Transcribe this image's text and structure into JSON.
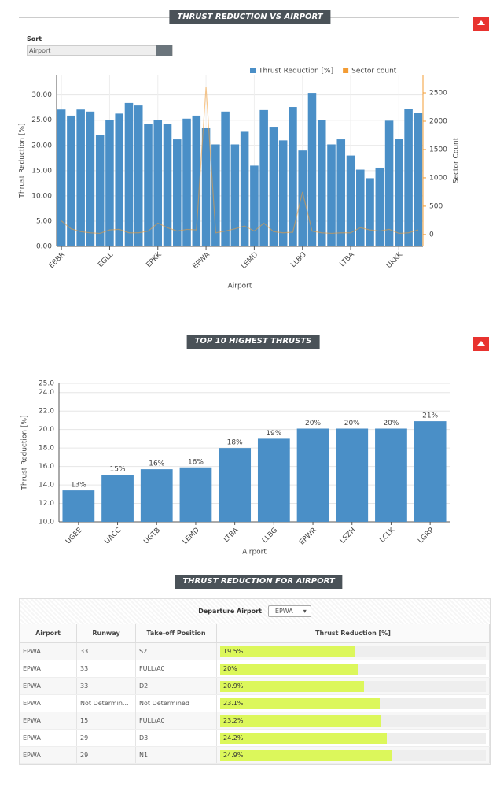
{
  "controls": {
    "sort_label": "Sort",
    "sort_value": "Airport"
  },
  "chart_data": [
    {
      "type": "bar",
      "title": "THRUST REDUCTION VS AIRPORT",
      "categories": [
        "EBBR",
        null,
        null,
        null,
        null,
        "EGLL",
        null,
        null,
        null,
        null,
        "EPKK",
        null,
        null,
        null,
        null,
        "EPWA",
        null,
        null,
        null,
        null,
        "LEMD",
        null,
        null,
        null,
        null,
        "LLBG",
        null,
        null,
        null,
        null,
        "LTBA",
        null,
        null,
        null,
        null,
        "UKKK",
        null,
        null
      ],
      "series": [
        {
          "name": "Thrust Reduction [%]",
          "color": "#4a8fc7",
          "values": [
            27.1,
            25.9,
            27.1,
            26.7,
            22.1,
            25.1,
            26.3,
            28.4,
            27.9,
            24.2,
            25.0,
            24.2,
            21.2,
            25.3,
            25.9,
            23.4,
            20.2,
            26.7,
            20.2,
            22.7,
            16.0,
            27.0,
            23.7,
            21.0,
            27.6,
            19.0,
            30.4,
            25.0,
            20.2,
            21.2,
            18.0,
            15.2,
            13.5,
            15.6,
            24.9,
            21.3,
            27.2,
            26.5
          ]
        },
        {
          "name": "Sector count",
          "color": "#f39c34",
          "axis": "y2",
          "values": [
            240,
            100,
            50,
            30,
            20,
            80,
            90,
            30,
            30,
            60,
            200,
            120,
            60,
            90,
            80,
            2600,
            30,
            60,
            100,
            150,
            60,
            200,
            50,
            30,
            40,
            750,
            60,
            30,
            20,
            30,
            30,
            120,
            80,
            60,
            90,
            20,
            30,
            80
          ]
        }
      ],
      "ylabel": "Thrust Reduction [%]",
      "y2label": "Sector Count",
      "xlabel": "Airport",
      "ylim": [
        0,
        34
      ],
      "yticks": [
        {
          "value": 0,
          "label": "0.00"
        },
        {
          "value": 5,
          "label": "5.00"
        },
        {
          "value": 10,
          "label": "10.00"
        },
        {
          "value": 15,
          "label": "15.00"
        },
        {
          "value": 20,
          "label": "20.00"
        },
        {
          "value": 25,
          "label": "25.00"
        },
        {
          "value": 30,
          "label": "30.00"
        }
      ],
      "y2lim": [
        -210,
        2820
      ],
      "y2ticks": [
        0,
        500,
        1000,
        1500,
        2000,
        2500
      ],
      "grid": true,
      "legend": "top-right"
    },
    {
      "type": "bar",
      "title": "TOP 10 HIGHEST THRUSTS",
      "categories": [
        "UGEE",
        "UACC",
        "UGTB",
        "LEMD",
        "LTBA",
        "LLBG",
        "EPWR",
        "LSZH",
        "LCLK",
        "LGRP"
      ],
      "values": [
        13.4,
        15.1,
        15.7,
        15.9,
        18.0,
        19.0,
        20.1,
        20.1,
        20.1,
        20.9
      ],
      "value_labels": [
        "13%",
        "15%",
        "16%",
        "16%",
        "18%",
        "19%",
        "20%",
        "20%",
        "20%",
        "21%"
      ],
      "color": "#4a8fc7",
      "ylabel": "Thrust Reduction [%]",
      "xlabel": "Airport",
      "ylim": [
        10,
        25
      ],
      "yticks": [
        {
          "value": 10,
          "label": "10.0"
        },
        {
          "value": 12,
          "label": "12.0"
        },
        {
          "value": 14,
          "label": "14.0"
        },
        {
          "value": 16,
          "label": "16.0"
        },
        {
          "value": 18,
          "label": "18.0"
        },
        {
          "value": 20,
          "label": "20.0"
        },
        {
          "value": 22,
          "label": "22.0"
        },
        {
          "value": 24,
          "label": "24.0"
        },
        {
          "value": 25,
          "label": "25.0"
        }
      ],
      "grid": true
    }
  ],
  "table": {
    "title": "THRUST REDUCTION FOR AIRPORT",
    "filter_label": "Departure Airport",
    "filter_value": "EPWA",
    "columns": [
      "Airport",
      "Runway",
      "Take-off Position",
      "Thrust Reduction [%]"
    ],
    "rows": [
      [
        "EPWA",
        "33",
        "S2"
      ],
      [
        "EPWA",
        "33",
        "FULL/A0"
      ],
      [
        "EPWA",
        "33",
        "D2"
      ],
      [
        "EPWA",
        "Not Determin...",
        "Not Determined"
      ],
      [
        "EPWA",
        "15",
        "FULL/A0"
      ],
      [
        "EPWA",
        "29",
        "D3"
      ],
      [
        "EPWA",
        "29",
        "N1"
      ]
    ],
    "thrust_values": [
      19.5,
      20,
      20.9,
      23.1,
      23.2,
      24.2,
      24.9
    ],
    "thrust_labels": [
      "19.5%",
      "20%",
      "20.9%",
      "23.1%",
      "23.2%",
      "24.2%",
      "24.9%"
    ],
    "xlim": [
      0,
      38.5
    ]
  }
}
